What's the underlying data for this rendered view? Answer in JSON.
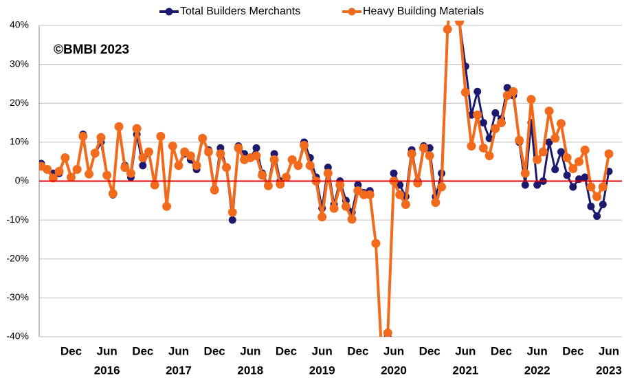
{
  "chart_data": {
    "type": "line",
    "annotation": "©BMBI 2023",
    "categories": [
      null,
      null,
      null,
      null,
      null,
      "Dec",
      null,
      null,
      null,
      null,
      null,
      "Jun",
      null,
      null,
      null,
      null,
      null,
      "Dec",
      null,
      null,
      null,
      null,
      null,
      "Jun",
      null,
      null,
      null,
      null,
      null,
      "Dec",
      null,
      null,
      null,
      null,
      null,
      "Jun",
      null,
      null,
      null,
      null,
      null,
      "Dec",
      null,
      null,
      null,
      null,
      null,
      "Jun",
      null,
      null,
      null,
      null,
      null,
      "Dec",
      null,
      null,
      null,
      null,
      null,
      "Jun",
      null,
      null,
      null,
      null,
      null,
      "Dec",
      null,
      null,
      null,
      null,
      null,
      "Jun",
      null,
      null,
      null,
      null,
      null,
      "Dec",
      null,
      null,
      null,
      null,
      null,
      "Jun",
      null,
      null,
      null,
      null,
      null,
      "Dec",
      null,
      null,
      null,
      null,
      null,
      "Jun"
    ],
    "year_labels": [
      "2016",
      "2017",
      "2018",
      "2019",
      "2020",
      "2021",
      "2022",
      "2023"
    ],
    "series": [
      {
        "name": "Total Builders Merchants",
        "color": "#1c1a6e",
        "values": [
          4.5,
          3,
          2,
          2,
          6,
          1,
          3,
          12,
          2,
          7,
          10,
          1.5,
          -3.5,
          14,
          4,
          1,
          12,
          4,
          7.5,
          -1,
          11.5,
          -6.5,
          9,
          4,
          7,
          5.5,
          3,
          11,
          8,
          -2,
          8.5,
          3.5,
          -10,
          9,
          7,
          6,
          8.5,
          2,
          -1,
          7,
          0,
          1,
          5.5,
          4,
          10,
          6,
          1,
          -7,
          3.5,
          -6,
          0,
          -5,
          -8,
          -1,
          -3,
          -2.5,
          -16,
          -45,
          -40,
          2,
          -1,
          -4,
          8,
          0,
          9,
          8.5,
          -4,
          2,
          39,
          55,
          41,
          29.5,
          17,
          23,
          15,
          11,
          17.5,
          16,
          24,
          22,
          10,
          -1,
          15,
          -1,
          0,
          10,
          3,
          7.5,
          1.5,
          -1.5,
          0.5,
          1,
          -6.5,
          -9,
          -6,
          2.5
        ]
      },
      {
        "name": "Heavy Building Materials",
        "color": "#f26b1d",
        "values": [
          3.8,
          3,
          0.8,
          2.5,
          6,
          1,
          3,
          11.5,
          1.8,
          7.2,
          11.2,
          1.5,
          -3.2,
          14,
          3.5,
          2,
          13.5,
          6,
          7.5,
          -1,
          11.5,
          -6.5,
          9,
          4,
          7.5,
          6.5,
          4,
          11,
          7.5,
          -2.3,
          7,
          3.5,
          -8,
          8.5,
          5.5,
          6,
          6.5,
          1.5,
          -1.2,
          5.5,
          -0.8,
          1,
          5.5,
          4,
          9.2,
          4,
          0,
          -9.2,
          2,
          -7,
          -1,
          -6.5,
          -9.8,
          -2.5,
          -3.5,
          -3.5,
          -16,
          -45,
          -39,
          0,
          -3.5,
          -6,
          7,
          -0.5,
          8.5,
          6.5,
          -5.5,
          -1.5,
          39,
          55,
          41,
          22.8,
          9,
          17,
          8.5,
          6.5,
          13.5,
          15,
          22,
          23,
          10.5,
          2,
          21,
          5.5,
          7.5,
          18,
          11,
          14.8,
          6,
          3.2,
          5,
          8,
          -1.5,
          -4,
          -1.5,
          7
        ]
      }
    ],
    "ylim": [
      -40,
      40
    ],
    "yticks": [
      {
        "value": -40,
        "label": "-40%"
      },
      {
        "value": -30,
        "label": "-30%"
      },
      {
        "value": -20,
        "label": "-20%"
      },
      {
        "value": -10,
        "label": "-10%"
      },
      {
        "value": 0,
        "label": "0%"
      },
      {
        "value": 10,
        "label": "10%"
      },
      {
        "value": 20,
        "label": "20%"
      },
      {
        "value": 30,
        "label": "30%"
      },
      {
        "value": 40,
        "label": "40%"
      }
    ],
    "grid": true,
    "zero_line_color": "#e00000",
    "legend": "top"
  }
}
